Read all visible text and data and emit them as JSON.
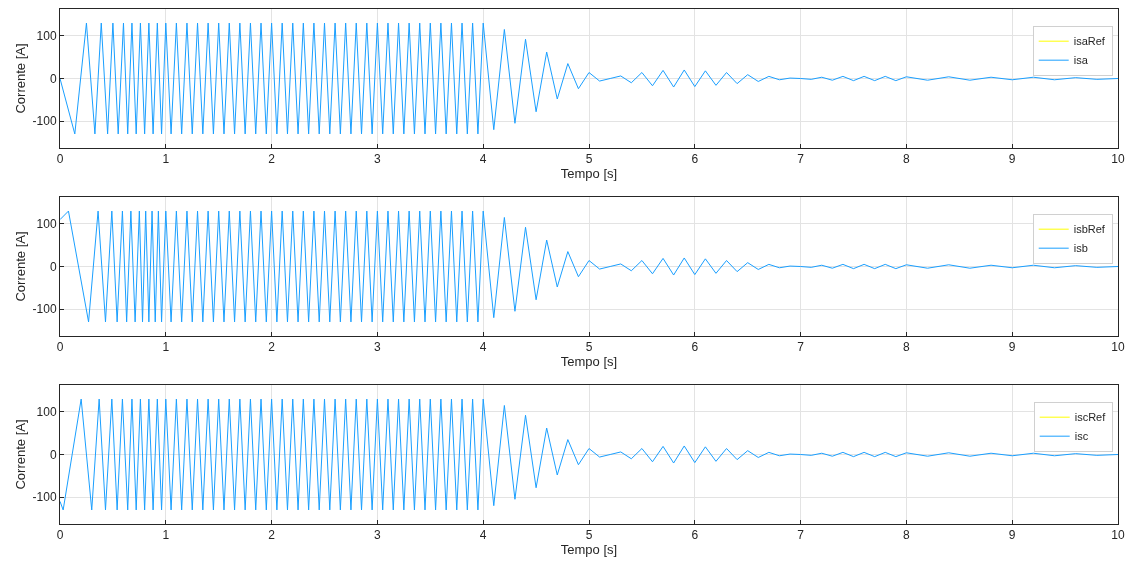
{
  "chart_data": [
    {
      "type": "line",
      "xlabel": "Tempo [s]",
      "ylabel": "Corrente [A]",
      "xlim": [
        0,
        10
      ],
      "xticks": [
        0,
        1,
        2,
        3,
        4,
        5,
        6,
        7,
        8,
        9,
        10
      ],
      "ylim": [
        -163,
        163
      ],
      "yticks": [
        -100,
        0,
        100
      ],
      "grid": true,
      "legend": "top right",
      "series": [
        {
          "name": "isaRef",
          "color": "#ffff00",
          "values": [
            null
          ]
        },
        {
          "name": "isa",
          "color": "#1a9fff",
          "x": [
            0,
            0.14,
            0.25,
            0.33,
            0.39,
            0.45,
            0.5,
            0.55,
            0.6,
            0.64,
            0.68,
            0.72,
            0.76,
            0.8,
            0.84,
            0.88,
            0.92,
            0.96,
            1.0,
            1.05,
            1.1,
            1.15,
            1.2,
            1.25,
            1.3,
            1.35,
            1.4,
            1.45,
            1.5,
            1.55,
            1.6,
            1.65,
            1.7,
            1.75,
            1.8,
            1.85,
            1.9,
            1.95,
            2.0,
            2.05,
            2.1,
            2.15,
            2.2,
            2.25,
            2.3,
            2.35,
            2.4,
            2.45,
            2.5,
            2.55,
            2.6,
            2.65,
            2.7,
            2.75,
            2.8,
            2.85,
            2.9,
            2.95,
            3.0,
            3.05,
            3.1,
            3.15,
            3.2,
            3.25,
            3.3,
            3.35,
            3.4,
            3.45,
            3.5,
            3.55,
            3.6,
            3.65,
            3.7,
            3.75,
            3.8,
            3.85,
            3.9,
            3.95,
            4.0,
            4.1,
            4.2,
            4.3,
            4.4,
            4.5,
            4.6,
            4.7,
            4.8,
            4.9,
            5.0,
            5.1,
            5.2,
            5.3,
            5.4,
            5.5,
            5.6,
            5.7,
            5.8,
            5.9,
            6.0,
            6.1,
            6.2,
            6.3,
            6.4,
            6.5,
            6.6,
            6.7,
            6.8,
            6.9,
            7.0,
            7.1,
            7.2,
            7.3,
            7.4,
            7.5,
            7.6,
            7.7,
            7.8,
            7.9,
            8.0,
            8.2,
            8.4,
            8.6,
            8.8,
            9.0,
            9.2,
            9.4,
            9.6,
            9.8,
            10.0
          ],
          "values": [
            0,
            -130,
            130,
            -130,
            130,
            -130,
            130,
            -130,
            130,
            -130,
            130,
            -130,
            130,
            -130,
            130,
            -130,
            130,
            -130,
            130,
            -130,
            130,
            -130,
            130,
            -130,
            130,
            -130,
            130,
            -130,
            130,
            -130,
            130,
            -130,
            130,
            -130,
            130,
            -130,
            130,
            -130,
            130,
            -130,
            130,
            -130,
            130,
            -130,
            130,
            -130,
            130,
            -130,
            130,
            -130,
            130,
            -130,
            130,
            -130,
            130,
            -130,
            130,
            -130,
            130,
            -130,
            130,
            -130,
            130,
            -130,
            130,
            -130,
            130,
            -130,
            130,
            -130,
            130,
            -130,
            130,
            -130,
            130,
            -130,
            130,
            -130,
            130,
            -120,
            115,
            -105,
            92,
            -78,
            62,
            -48,
            35,
            -24,
            14,
            -6,
            0,
            6,
            -10,
            14,
            -17,
            19,
            -20,
            20,
            -19,
            18,
            -16,
            14,
            -12,
            9,
            -7,
            5,
            -3,
            1,
            0,
            -2,
            3,
            -4,
            5,
            -5,
            5,
            -5,
            5,
            -5,
            4,
            -4,
            4,
            -4,
            3,
            -3,
            3,
            -3,
            2,
            -2,
            0
          ]
        }
      ]
    },
    {
      "type": "line",
      "xlabel": "Tempo [s]",
      "ylabel": "Corrente [A]",
      "xlim": [
        0,
        10
      ],
      "xticks": [
        0,
        1,
        2,
        3,
        4,
        5,
        6,
        7,
        8,
        9,
        10
      ],
      "ylim": [
        -163,
        163
      ],
      "yticks": [
        -100,
        0,
        100
      ],
      "grid": true,
      "legend": "top right",
      "series": [
        {
          "name": "isbRef",
          "color": "#ffff00",
          "values": [
            null
          ]
        },
        {
          "name": "isb",
          "color": "#1a9fff",
          "x": [
            0,
            0.08,
            0.27,
            0.36,
            0.43,
            0.49,
            0.54,
            0.59,
            0.63,
            0.67,
            0.71,
            0.75,
            0.78,
            0.81,
            0.84,
            0.87,
            0.9,
            0.93,
            0.96,
            1.0,
            1.05,
            1.1,
            1.15,
            1.2,
            1.25,
            1.3,
            1.35,
            1.4,
            1.45,
            1.5,
            1.55,
            1.6,
            1.65,
            1.7,
            1.75,
            1.8,
            1.85,
            1.9,
            1.95,
            2.0,
            2.05,
            2.1,
            2.15,
            2.2,
            2.25,
            2.3,
            2.35,
            2.4,
            2.45,
            2.5,
            2.55,
            2.6,
            2.65,
            2.7,
            2.75,
            2.8,
            2.85,
            2.9,
            2.95,
            3.0,
            3.05,
            3.1,
            3.15,
            3.2,
            3.25,
            3.3,
            3.35,
            3.4,
            3.45,
            3.5,
            3.55,
            3.6,
            3.65,
            3.7,
            3.75,
            3.8,
            3.85,
            3.9,
            3.95,
            4.0,
            4.1,
            4.2,
            4.3,
            4.4,
            4.5,
            4.6,
            4.7,
            4.8,
            4.9,
            5.0,
            5.1,
            5.2,
            5.3,
            5.4,
            5.5,
            5.6,
            5.7,
            5.8,
            5.9,
            6.0,
            6.1,
            6.2,
            6.3,
            6.4,
            6.5,
            6.6,
            6.7,
            6.8,
            6.9,
            7.0,
            7.1,
            7.2,
            7.3,
            7.4,
            7.5,
            7.6,
            7.7,
            7.8,
            7.9,
            8.0,
            8.2,
            8.4,
            8.6,
            8.8,
            9.0,
            9.2,
            9.4,
            9.6,
            9.8,
            10.0
          ],
          "values": [
            110,
            130,
            -130,
            130,
            -130,
            130,
            -130,
            130,
            -130,
            130,
            -130,
            130,
            -130,
            130,
            -130,
            130,
            -130,
            130,
            -130,
            130,
            -130,
            130,
            -130,
            130,
            -130,
            130,
            -130,
            130,
            -130,
            130,
            -130,
            130,
            -130,
            130,
            -130,
            130,
            -130,
            130,
            -130,
            130,
            -130,
            130,
            -130,
            130,
            -130,
            130,
            -130,
            130,
            -130,
            130,
            -130,
            130,
            -130,
            130,
            -130,
            130,
            -130,
            130,
            -130,
            130,
            -130,
            130,
            -130,
            130,
            -130,
            130,
            -130,
            130,
            -130,
            130,
            -130,
            130,
            -130,
            130,
            -130,
            130,
            -130,
            130,
            -130,
            130,
            -120,
            115,
            -105,
            92,
            -78,
            62,
            -48,
            35,
            -24,
            14,
            -6,
            0,
            6,
            -10,
            14,
            -17,
            19,
            -20,
            20,
            -19,
            18,
            -16,
            14,
            -12,
            9,
            -7,
            5,
            -3,
            1,
            0,
            -2,
            3,
            -4,
            5,
            -5,
            5,
            -5,
            5,
            -5,
            4,
            -4,
            4,
            -4,
            3,
            -3,
            3,
            -3,
            2,
            -2,
            0
          ]
        }
      ]
    },
    {
      "type": "line",
      "xlabel": "Tempo [s]",
      "ylabel": "Corrente [A]",
      "xlim": [
        0,
        10
      ],
      "xticks": [
        0,
        1,
        2,
        3,
        4,
        5,
        6,
        7,
        8,
        9,
        10
      ],
      "ylim": [
        -163,
        163
      ],
      "yticks": [
        -100,
        0,
        100
      ],
      "grid": true,
      "legend": "top right",
      "series": [
        {
          "name": "iscRef",
          "color": "#ffff00",
          "values": [
            null
          ]
        },
        {
          "name": "isc",
          "color": "#1a9fff",
          "x": [
            0,
            0.03,
            0.2,
            0.3,
            0.37,
            0.43,
            0.49,
            0.54,
            0.59,
            0.64,
            0.68,
            0.72,
            0.76,
            0.8,
            0.84,
            0.88,
            0.92,
            0.96,
            1.0,
            1.05,
            1.1,
            1.15,
            1.2,
            1.25,
            1.3,
            1.35,
            1.4,
            1.45,
            1.5,
            1.55,
            1.6,
            1.65,
            1.7,
            1.75,
            1.8,
            1.85,
            1.9,
            1.95,
            2.0,
            2.05,
            2.1,
            2.15,
            2.2,
            2.25,
            2.3,
            2.35,
            2.4,
            2.45,
            2.5,
            2.55,
            2.6,
            2.65,
            2.7,
            2.75,
            2.8,
            2.85,
            2.9,
            2.95,
            3.0,
            3.05,
            3.1,
            3.15,
            3.2,
            3.25,
            3.3,
            3.35,
            3.4,
            3.45,
            3.5,
            3.55,
            3.6,
            3.65,
            3.7,
            3.75,
            3.8,
            3.85,
            3.9,
            3.95,
            4.0,
            4.1,
            4.2,
            4.3,
            4.4,
            4.5,
            4.6,
            4.7,
            4.8,
            4.9,
            5.0,
            5.1,
            5.2,
            5.3,
            5.4,
            5.5,
            5.6,
            5.7,
            5.8,
            5.9,
            6.0,
            6.1,
            6.2,
            6.3,
            6.4,
            6.5,
            6.6,
            6.7,
            6.8,
            6.9,
            7.0,
            7.1,
            7.2,
            7.3,
            7.4,
            7.5,
            7.6,
            7.7,
            7.8,
            7.9,
            8.0,
            8.2,
            8.4,
            8.6,
            8.8,
            9.0,
            9.2,
            9.4,
            9.6,
            9.8,
            10.0
          ],
          "values": [
            -110,
            -130,
            130,
            -130,
            130,
            -130,
            130,
            -130,
            130,
            -130,
            130,
            -130,
            130,
            -130,
            130,
            -130,
            130,
            -130,
            130,
            -130,
            130,
            -130,
            130,
            -130,
            130,
            -130,
            130,
            -130,
            130,
            -130,
            130,
            -130,
            130,
            -130,
            130,
            -130,
            130,
            -130,
            130,
            -130,
            130,
            -130,
            130,
            -130,
            130,
            -130,
            130,
            -130,
            130,
            -130,
            130,
            -130,
            130,
            -130,
            130,
            -130,
            130,
            -130,
            130,
            -130,
            130,
            -130,
            130,
            -130,
            130,
            -130,
            130,
            -130,
            130,
            -130,
            130,
            -130,
            130,
            -130,
            130,
            -130,
            130,
            -130,
            130,
            -120,
            115,
            -105,
            92,
            -78,
            62,
            -48,
            35,
            -24,
            14,
            -6,
            0,
            6,
            -10,
            14,
            -17,
            19,
            -20,
            20,
            -19,
            18,
            -16,
            14,
            -12,
            9,
            -7,
            5,
            -3,
            1,
            0,
            -2,
            3,
            -4,
            5,
            -5,
            5,
            -5,
            5,
            -5,
            4,
            -4,
            4,
            -4,
            3,
            -3,
            3,
            -3,
            2,
            -2,
            0
          ]
        }
      ]
    }
  ]
}
